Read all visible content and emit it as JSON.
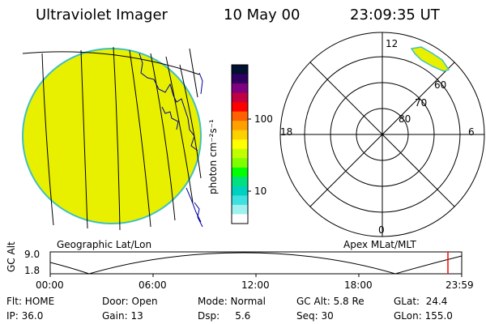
{
  "header": {
    "title": "Ultraviolet Imager",
    "date": "10 May 00",
    "time": "23:09:35 UT"
  },
  "geo_panel": {
    "label": "Geographic Lat/Lon"
  },
  "colorbar": {
    "unit": "photon cm⁻²s⁻¹",
    "tick_100": "100",
    "tick_10": "10",
    "colors": [
      "#001030",
      "#300060",
      "#800080",
      "#c00040",
      "#ff0000",
      "#ff6000",
      "#ffa000",
      "#ffd000",
      "#ffff00",
      "#c0ff00",
      "#80ff00",
      "#00ff00",
      "#00e080",
      "#00d0c0",
      "#40e0e0",
      "#a0f0f0",
      "#ffffff"
    ]
  },
  "polar_panel": {
    "label": "Apex MLat/MLT",
    "mlt_12": "12",
    "mlt_18": "18",
    "mlt_6": "6",
    "mlt_0": "0",
    "lat_60": "60",
    "lat_70": "70",
    "lat_80": "80"
  },
  "timeline": {
    "ylabel": "GC Alt",
    "y_top": "9.0",
    "y_bottom": "1.8",
    "ticks": [
      "00:00",
      "06:00",
      "12:00",
      "18:00",
      "23:59"
    ],
    "marker_color": "#ff0000"
  },
  "info": {
    "flt": "Flt: HOME",
    "door": "Door: Open",
    "mode": "Mode: Normal",
    "gcalt": "GC Alt: 5.8 Re",
    "glat": "GLat:  24.4",
    "ip": "IP: 36.0",
    "gain": "Gain: 13",
    "dsp": "Dsp:     5.6",
    "seq": "Seq: 30",
    "glon": "GLon: 155.0"
  },
  "colors": {
    "disk_fill": "#e8f000",
    "disk_edge": "#40c0c0",
    "aurora_fill": "#e8f000",
    "coast": "#0000a0"
  }
}
